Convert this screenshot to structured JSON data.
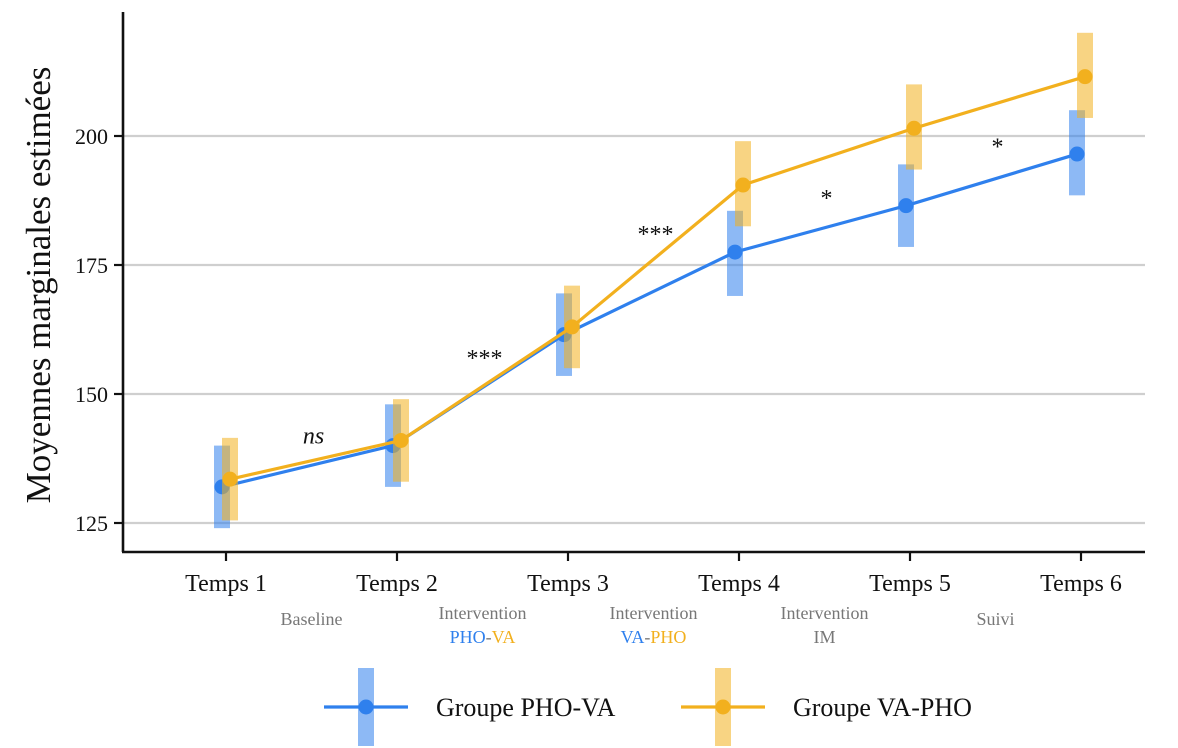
{
  "chart_data": {
    "type": "line",
    "ylabel": "Moyennes marginales estimées",
    "xlabel": "",
    "categories": [
      "Temps 1",
      "Temps 2",
      "Temps 3",
      "Temps 4",
      "Temps 5",
      "Temps 6"
    ],
    "y_ticks": [
      125,
      150,
      175,
      200
    ],
    "ylim": [
      121,
      225
    ],
    "grid": true,
    "legend_position": "bottom",
    "series": [
      {
        "name": "Groupe PHO-VA",
        "color": "#2f80ed",
        "values": [
          132,
          140,
          161.5,
          177.5,
          186.5,
          196.5
        ],
        "ci_low": [
          124,
          132,
          153.5,
          169,
          178.5,
          188.5
        ],
        "ci_high": [
          140,
          148,
          169.5,
          185.5,
          194.5,
          205
        ]
      },
      {
        "name": "Groupe VA-PHO",
        "color": "#f2b01e",
        "values": [
          133.5,
          141,
          163,
          190.5,
          201.5,
          211.5
        ],
        "ci_low": [
          125.5,
          133,
          155,
          182.5,
          193.5,
          203.5
        ],
        "ci_high": [
          141.5,
          149,
          171,
          199,
          210,
          220
        ]
      }
    ],
    "significance": [
      {
        "label": "ns",
        "italic": true,
        "between": [
          1,
          2
        ],
        "y": 142
      },
      {
        "label": "***",
        "italic": false,
        "between": [
          2,
          3
        ],
        "y": 157
      },
      {
        "label": "***",
        "italic": false,
        "between": [
          3,
          4
        ],
        "y": 181
      },
      {
        "label": "*",
        "italic": false,
        "between": [
          4,
          5
        ],
        "y": 188
      },
      {
        "label": "*",
        "italic": false,
        "between": [
          5,
          6
        ],
        "y": 198
      }
    ],
    "phases": [
      {
        "lines": [
          [
            {
              "text": "Baseline",
              "color": "#777777"
            }
          ]
        ]
      },
      {
        "lines": [
          [
            {
              "text": "Intervention",
              "color": "#777777"
            }
          ],
          [
            {
              "text": "PHO",
              "color": "#2f80ed"
            },
            {
              "text": "-",
              "color": "#777777"
            },
            {
              "text": "VA",
              "color": "#f2b01e"
            }
          ]
        ]
      },
      {
        "lines": [
          [
            {
              "text": "Intervention",
              "color": "#777777"
            }
          ],
          [
            {
              "text": "VA",
              "color": "#2f80ed"
            },
            {
              "text": "-",
              "color": "#777777"
            },
            {
              "text": "PHO",
              "color": "#f2b01e"
            }
          ]
        ]
      },
      {
        "lines": [
          [
            {
              "text": "Intervention",
              "color": "#777777"
            }
          ],
          [
            {
              "text": "IM",
              "color": "#777777"
            }
          ]
        ]
      },
      {
        "lines": [
          [
            {
              "text": "Suivi",
              "color": "#777777"
            }
          ]
        ]
      }
    ]
  }
}
